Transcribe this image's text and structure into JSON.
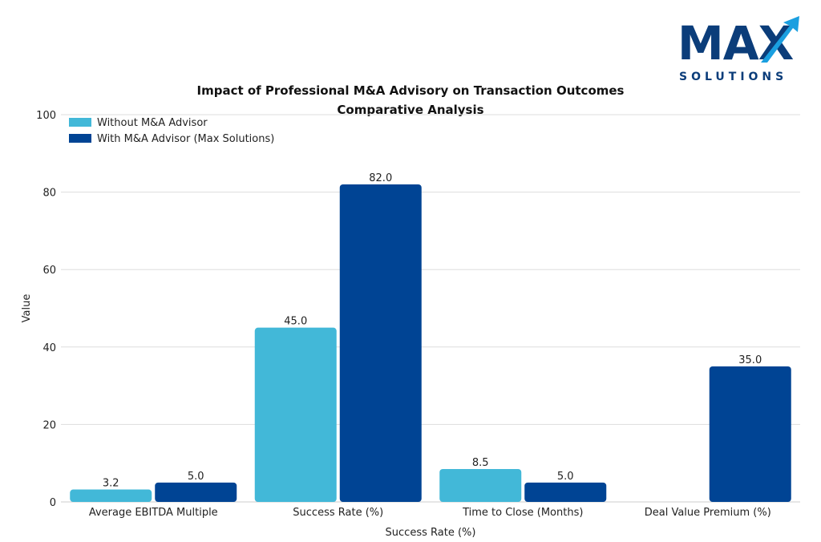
{
  "brand": {
    "logo_text": "MAX",
    "logo_sub": "SOLUTIONS",
    "logo_color": "#0b3d7a",
    "logo_accent": "#1a9fe0"
  },
  "chart_data": {
    "type": "bar",
    "title": "Impact of Professional M&A Advisory on Transaction Outcomes",
    "subtitle": "Comparative Analysis",
    "xlabel": "Success Rate (%)",
    "ylabel": "Value",
    "ylim": [
      0,
      100
    ],
    "yticks": [
      0,
      20,
      40,
      60,
      80,
      100
    ],
    "grid": true,
    "legend_position": "top-left",
    "categories": [
      "Average EBITDA Multiple",
      "Success Rate (%)",
      "Time to Close (Months)",
      "Deal Value Premium (%)"
    ],
    "series": [
      {
        "name": "Without M&A Advisor",
        "color": "#42b8d8",
        "values": [
          3.2,
          45.0,
          8.5,
          null
        ],
        "labels": [
          "3.2",
          "45.0",
          "8.5",
          ""
        ]
      },
      {
        "name": "With M&A Advisor (Max Solutions)",
        "color": "#004494",
        "values": [
          5.0,
          82.0,
          5.0,
          35.0
        ],
        "labels": [
          "5.0",
          "82.0",
          "5.0",
          "35.0"
        ]
      }
    ]
  }
}
